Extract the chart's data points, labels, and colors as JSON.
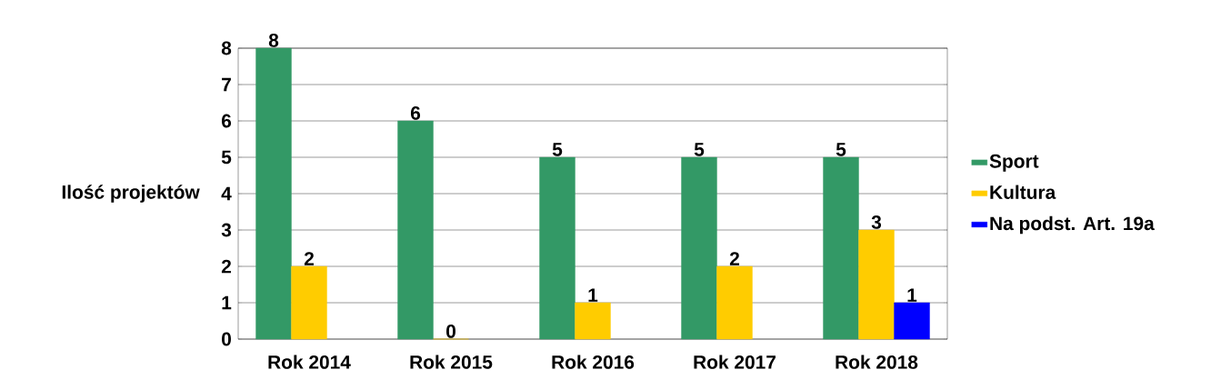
{
  "chart_data": {
    "type": "bar",
    "ylabel": "Ilość projektów",
    "categories": [
      "Rok 2014",
      "Rok 2015",
      "Rok 2016",
      "Rok 2017",
      "Rok 2018"
    ],
    "series": [
      {
        "name": "Sport",
        "color": "#339966",
        "values": [
          8,
          6,
          5,
          5,
          5
        ]
      },
      {
        "name": "Kultura",
        "color": "#ffcc00",
        "values": [
          2,
          0,
          1,
          2,
          3
        ]
      },
      {
        "name": "Na podst. Art. 19a",
        "color": "#0000ff",
        "values": [
          null,
          null,
          null,
          null,
          1
        ]
      }
    ],
    "ylim": [
      0,
      8
    ],
    "yticks": [
      0,
      1,
      2,
      3,
      4,
      5,
      6,
      7,
      8
    ],
    "grid": "y",
    "legend": "right",
    "data_labels": true
  }
}
